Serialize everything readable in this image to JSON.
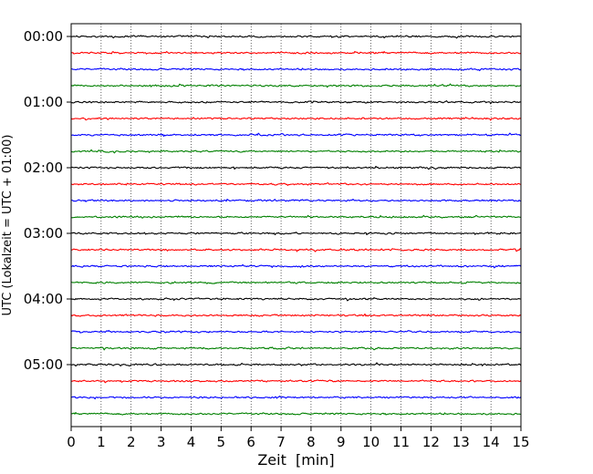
{
  "chart_data": {
    "type": "line",
    "title": "",
    "xlabel": "Zeit  [min]",
    "ylabel": "UTC (Lokalzeit = UTC + 01:00)",
    "xlim": [
      0,
      15
    ],
    "x_ticks": [
      0,
      1,
      2,
      3,
      4,
      5,
      6,
      7,
      8,
      9,
      10,
      11,
      12,
      13,
      14,
      15
    ],
    "y_tick_labels": [
      "00:00",
      "01:00",
      "02:00",
      "03:00",
      "04:00",
      "05:00"
    ],
    "trace_interval_minutes": 15,
    "trace_count": 24,
    "color_cycle": [
      "#000000",
      "#ff0000",
      "#0000ff",
      "#008000"
    ],
    "vertical_grid": true,
    "grid_style": "dotted"
  }
}
